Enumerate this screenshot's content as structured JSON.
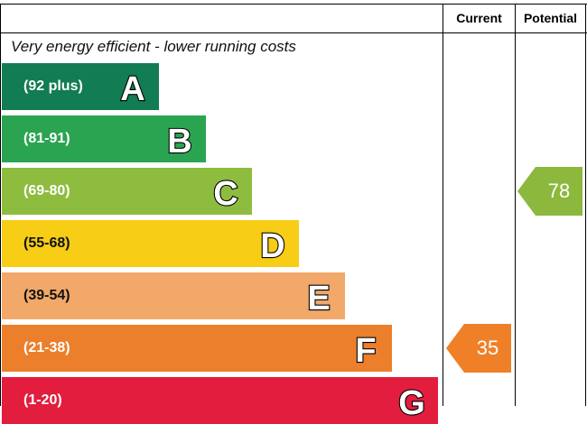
{
  "header": {
    "current_label": "Current",
    "potential_label": "Potential"
  },
  "tagline": "Very energy efficient - lower running costs",
  "colors": {
    "current_arrow": "#ef8027",
    "potential_arrow": "#8cb83e"
  },
  "chart_data": {
    "type": "bar",
    "categories": [
      "A",
      "B",
      "C",
      "D",
      "E",
      "F",
      "G"
    ],
    "ranges": [
      "(92 plus)",
      "(81-91)",
      "(69-80)",
      "(55-68)",
      "(39-54)",
      "(21-38)",
      "(1-20)"
    ],
    "colors": [
      "#127c52",
      "#2ba451",
      "#8ebc3f",
      "#f7cd15",
      "#f1a869",
      "#ec7f2b",
      "#e31d3d"
    ],
    "current": 35,
    "potential": 78
  }
}
